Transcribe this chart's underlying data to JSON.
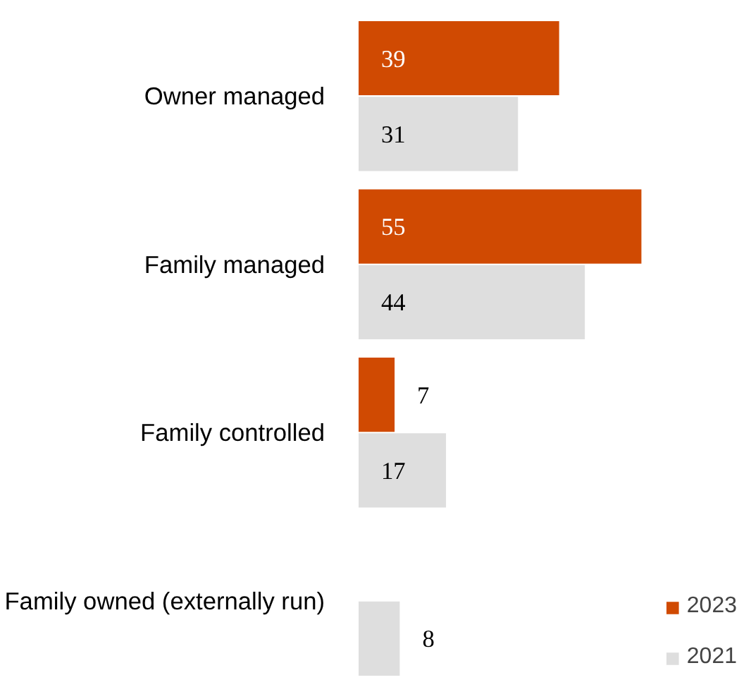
{
  "chart_data": {
    "type": "bar",
    "orientation": "horizontal",
    "categories": [
      "Owner managed",
      "Family managed",
      "Family controlled",
      "Family owned (externally run)"
    ],
    "series": [
      {
        "name": "2023",
        "color": "#d04a02",
        "values": [
          39,
          55,
          7,
          null
        ]
      },
      {
        "name": "2021",
        "color": "#dedede",
        "values": [
          31,
          44,
          17,
          8
        ]
      }
    ],
    "data_labels": true,
    "legend": "bottom right",
    "grid": false,
    "tick_labels": "y"
  }
}
